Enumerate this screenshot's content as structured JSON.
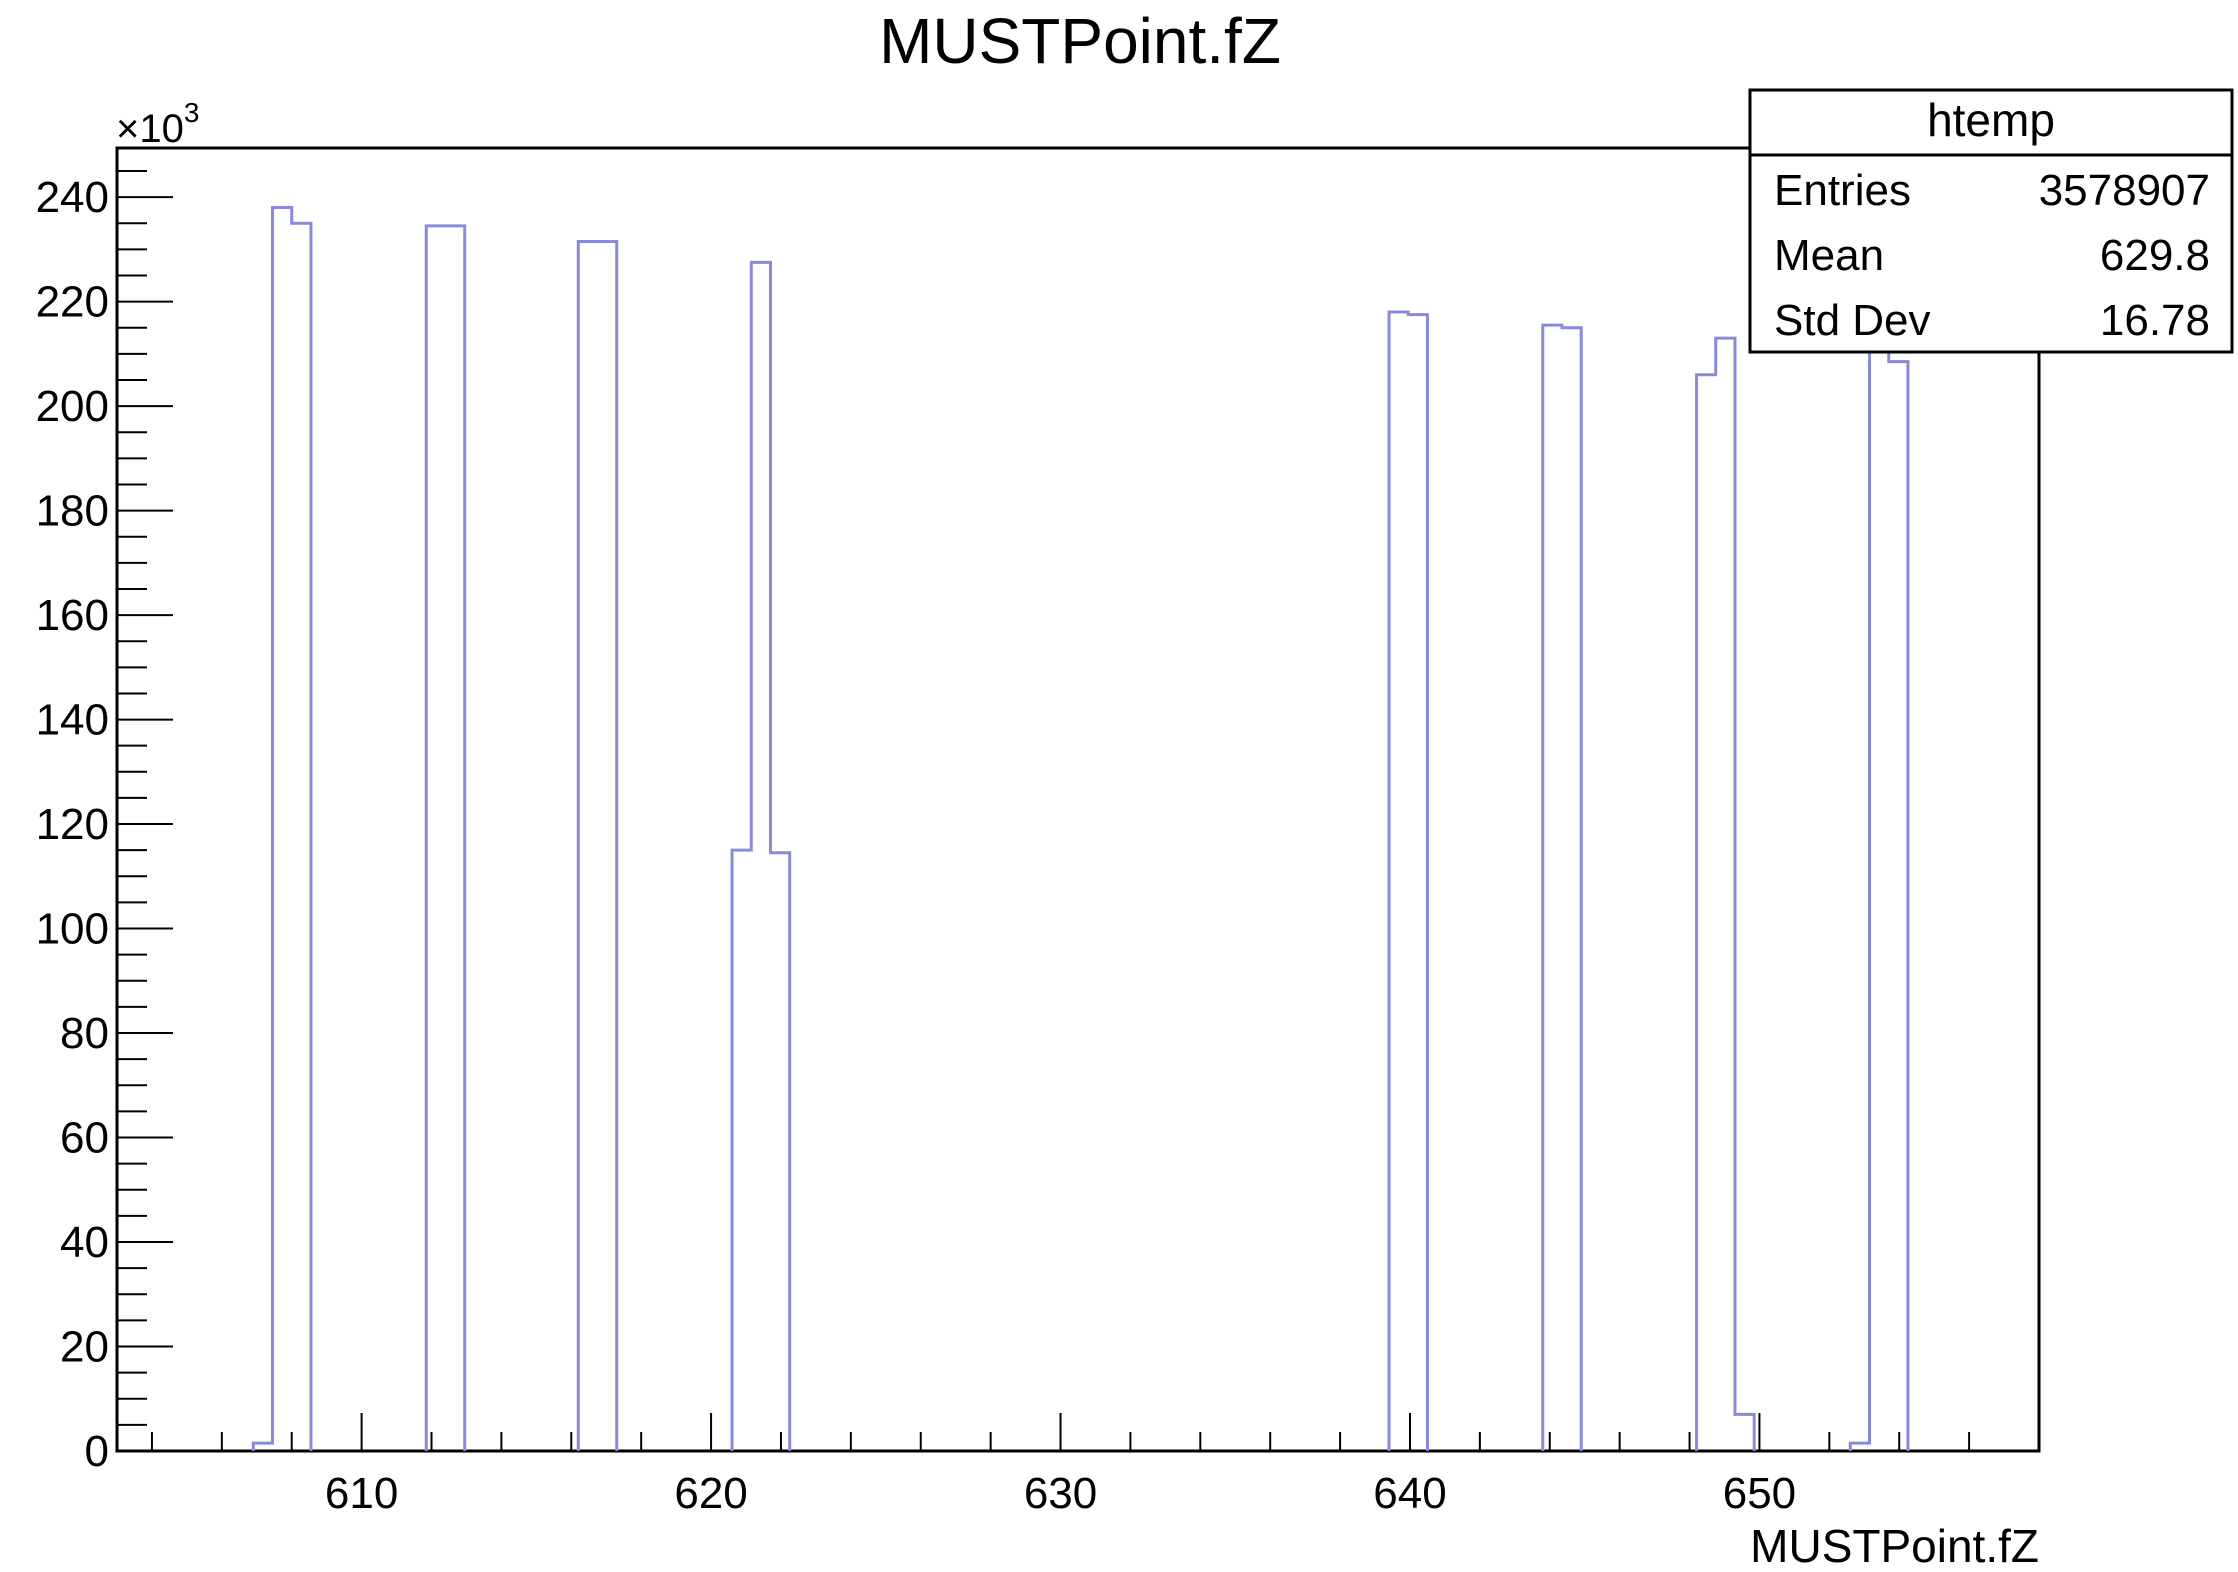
{
  "chart_data": {
    "type": "histogram",
    "title": "MUSTPoint.fZ",
    "xlabel": "MUSTPoint.fZ",
    "ylabel": "",
    "y_multiplier": "×10",
    "y_multiplier_exp": "3",
    "xlim": [
      603.0,
      658.0
    ],
    "ylim": [
      0,
      249.4
    ],
    "x_ticks": [
      610,
      620,
      630,
      640,
      650
    ],
    "y_ticks": [
      0,
      20,
      40,
      60,
      80,
      100,
      120,
      140,
      160,
      180,
      200,
      220,
      240
    ],
    "grid": false,
    "line_color": "#8a8adb",
    "bin_width": 0.55,
    "bins": [
      {
        "x": 606.9,
        "y": 1.5
      },
      {
        "x": 607.45,
        "y": 238
      },
      {
        "x": 608.0,
        "y": 235
      },
      {
        "x": 611.85,
        "y": 234.5
      },
      {
        "x": 612.4,
        "y": 234.5
      },
      {
        "x": 616.2,
        "y": 231.5
      },
      {
        "x": 616.75,
        "y": 231.5
      },
      {
        "x": 620.6,
        "y": 115
      },
      {
        "x": 621.15,
        "y": 227.5
      },
      {
        "x": 621.7,
        "y": 114.5
      },
      {
        "x": 639.4,
        "y": 218
      },
      {
        "x": 639.95,
        "y": 217.5
      },
      {
        "x": 643.8,
        "y": 215.5
      },
      {
        "x": 644.35,
        "y": 215
      },
      {
        "x": 648.2,
        "y": 206
      },
      {
        "x": 648.75,
        "y": 213
      },
      {
        "x": 649.3,
        "y": 7
      },
      {
        "x": 652.6,
        "y": 1.5
      },
      {
        "x": 653.15,
        "y": 210.5
      },
      {
        "x": 653.7,
        "y": 208.5
      }
    ]
  },
  "stats_box": {
    "name": "htemp",
    "rows": [
      {
        "label": "Entries",
        "value": "3578907"
      },
      {
        "label": "Mean",
        "value": "629.8"
      },
      {
        "label": "Std Dev",
        "value": "16.78"
      }
    ]
  }
}
